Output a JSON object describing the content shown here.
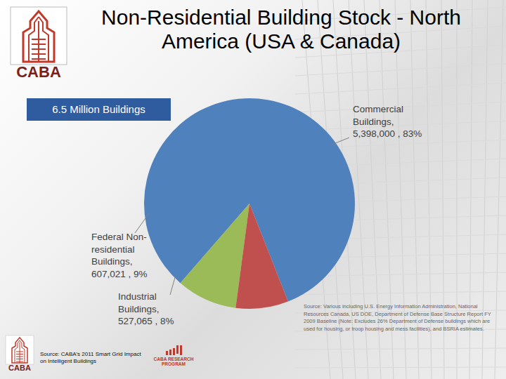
{
  "header": {
    "title": "Non-Residential Building Stock - North America (USA & Canada)",
    "logo_text": "CABA"
  },
  "summary_box": "6.5 Million Buildings",
  "chart_data": {
    "type": "pie",
    "categories": [
      "Commercial Buildings",
      "Federal Non-residential Buildings",
      "Industrial Buildings"
    ],
    "values": [
      5398000,
      607021,
      527065
    ],
    "value_labels": [
      "Commercial Buildings, 5,398,000 , 83%",
      "Federal Non-residential Buildings, 607,021 , 9%",
      "Industrial Buildings, 527,065 , 8%"
    ],
    "colors": [
      "#4f81bd",
      "#9bbb59",
      "#c0504d"
    ],
    "data_labels": true
  },
  "notes": {
    "source_detail": "Source: Various including U.S. Energy Information Administration, National Resources Canada, US DOE, Department of Defense Base Structure Report FY 2009 Baseline (Note: Excludes 26% Department of Defense buildings which are used for housing, or troop housing and mess facilities), and BSRIA estimates.",
    "source": "Source: CABA's 2011 Smart Grid Impact on Intelligent Buildings",
    "program": "CABA RESEARCH PROGRAM",
    "footer_logo_text": "CABA"
  }
}
